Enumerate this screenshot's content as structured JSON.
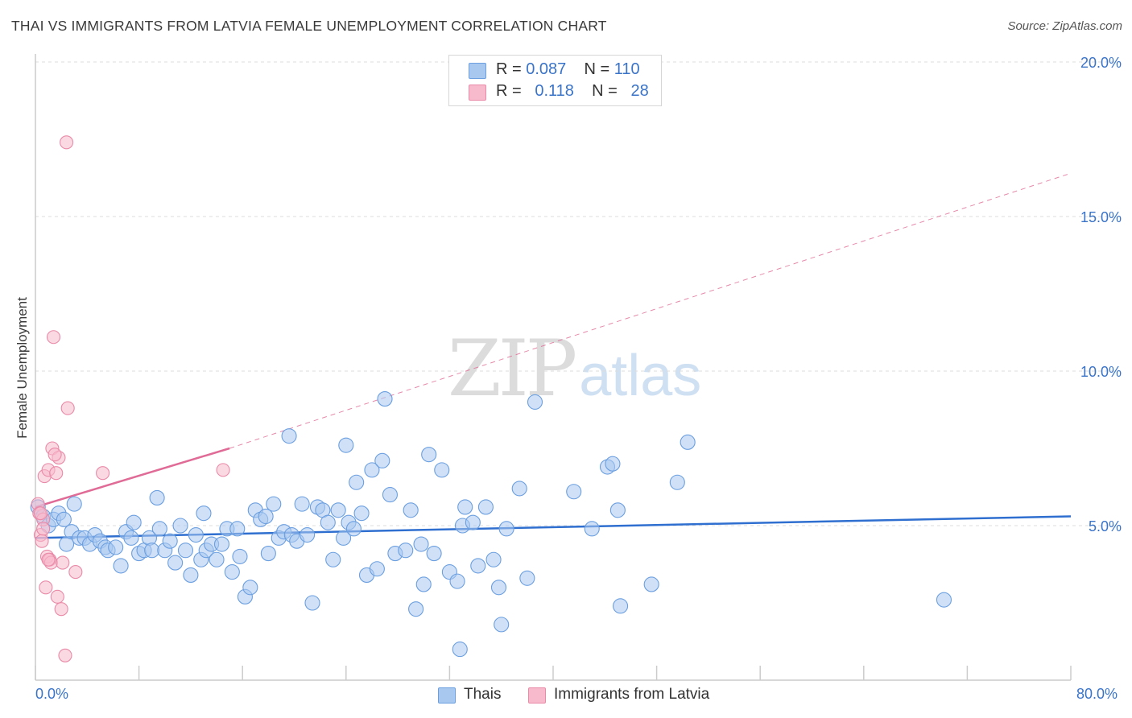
{
  "header": {
    "title": "THAI VS IMMIGRANTS FROM LATVIA FEMALE UNEMPLOYMENT CORRELATION CHART",
    "source": "Source: ZipAtlas.com"
  },
  "watermark": {
    "zip": "ZIP",
    "atlas": "atlas"
  },
  "legend": {
    "rows": [
      {
        "r_label": "R =",
        "r_value": "0.087",
        "n_label": "N =",
        "n_value": "110",
        "color": "#a9c8f0"
      },
      {
        "r_label": "R =",
        "r_value": "0.118",
        "n_label": "N =",
        "n_value": "28",
        "color": "#f7b9cc"
      }
    ]
  },
  "bottom_legend": {
    "items": [
      {
        "label": "Thais",
        "color": "#a9c8f0"
      },
      {
        "label": "Immigrants from Latvia",
        "color": "#f7b9cc"
      }
    ]
  },
  "chart_data": {
    "type": "scatter",
    "title": "THAI VS IMMIGRANTS FROM LATVIA FEMALE UNEMPLOYMENT CORRELATION CHART",
    "xlabel": "",
    "ylabel": "Female Unemployment",
    "xlim": [
      0,
      80
    ],
    "ylim": [
      0,
      20
    ],
    "x_tick_labels": [
      "0.0%",
      "80.0%"
    ],
    "y_ticks": [
      5,
      10,
      15,
      20
    ],
    "y_tick_labels": [
      "5.0%",
      "10.0%",
      "15.0%",
      "20.0%"
    ],
    "grid": true,
    "series": [
      {
        "name": "Thais",
        "color": "#6b9fe0",
        "fill": "#a9c8f0",
        "trend": {
          "x": [
            0,
            80
          ],
          "y": [
            4.6,
            5.3
          ],
          "style": "solid",
          "color": "#2f6fcf"
        },
        "points": [
          [
            0.2,
            5.6
          ],
          [
            0.6,
            5.3
          ],
          [
            1.0,
            5.0
          ],
          [
            1.4,
            5.2
          ],
          [
            1.8,
            5.4
          ],
          [
            2.2,
            5.2
          ],
          [
            2.4,
            4.4
          ],
          [
            2.8,
            4.8
          ],
          [
            3.0,
            5.7
          ],
          [
            3.4,
            4.6
          ],
          [
            3.8,
            4.6
          ],
          [
            4.2,
            4.4
          ],
          [
            4.6,
            4.7
          ],
          [
            5.0,
            4.5
          ],
          [
            5.4,
            4.3
          ],
          [
            5.6,
            4.2
          ],
          [
            6.2,
            4.3
          ],
          [
            6.6,
            3.7
          ],
          [
            7.0,
            4.8
          ],
          [
            7.4,
            4.6
          ],
          [
            7.6,
            5.1
          ],
          [
            8.0,
            4.1
          ],
          [
            8.4,
            4.2
          ],
          [
            8.8,
            4.6
          ],
          [
            9.0,
            4.2
          ],
          [
            9.4,
            5.9
          ],
          [
            9.6,
            4.9
          ],
          [
            10.0,
            4.2
          ],
          [
            10.4,
            4.5
          ],
          [
            10.8,
            3.8
          ],
          [
            11.2,
            5.0
          ],
          [
            11.6,
            4.2
          ],
          [
            12.0,
            3.4
          ],
          [
            12.4,
            4.7
          ],
          [
            12.8,
            3.9
          ],
          [
            13.0,
            5.4
          ],
          [
            13.2,
            4.2
          ],
          [
            13.6,
            4.4
          ],
          [
            14.0,
            3.9
          ],
          [
            14.4,
            4.4
          ],
          [
            14.8,
            4.9
          ],
          [
            15.2,
            3.5
          ],
          [
            15.6,
            4.9
          ],
          [
            15.8,
            4.0
          ],
          [
            16.2,
            2.7
          ],
          [
            16.6,
            3.0
          ],
          [
            17.0,
            5.5
          ],
          [
            17.4,
            5.2
          ],
          [
            17.8,
            5.3
          ],
          [
            18.0,
            4.1
          ],
          [
            18.4,
            5.7
          ],
          [
            18.8,
            4.6
          ],
          [
            19.2,
            4.8
          ],
          [
            19.6,
            7.9
          ],
          [
            19.8,
            4.7
          ],
          [
            20.2,
            4.5
          ],
          [
            20.6,
            5.7
          ],
          [
            21.0,
            4.7
          ],
          [
            21.4,
            2.5
          ],
          [
            21.8,
            5.6
          ],
          [
            22.2,
            5.5
          ],
          [
            22.6,
            5.1
          ],
          [
            23.0,
            3.9
          ],
          [
            23.4,
            5.5
          ],
          [
            23.8,
            4.6
          ],
          [
            24.2,
            5.1
          ],
          [
            24.6,
            4.9
          ],
          [
            24.8,
            6.4
          ],
          [
            25.2,
            5.4
          ],
          [
            25.6,
            3.4
          ],
          [
            26.0,
            6.8
          ],
          [
            26.4,
            3.6
          ],
          [
            26.8,
            7.1
          ],
          [
            27.0,
            9.1
          ],
          [
            27.4,
            6.0
          ],
          [
            27.8,
            4.1
          ],
          [
            28.6,
            4.2
          ],
          [
            29.0,
            5.5
          ],
          [
            29.4,
            2.3
          ],
          [
            29.8,
            4.4
          ],
          [
            30.0,
            3.1
          ],
          [
            30.4,
            7.3
          ],
          [
            30.8,
            4.1
          ],
          [
            31.4,
            6.8
          ],
          [
            32.0,
            3.5
          ],
          [
            32.6,
            3.2
          ],
          [
            33.0,
            5.0
          ],
          [
            33.2,
            5.6
          ],
          [
            33.8,
            5.1
          ],
          [
            34.2,
            3.7
          ],
          [
            34.8,
            5.6
          ],
          [
            35.4,
            3.9
          ],
          [
            35.8,
            3.0
          ],
          [
            36.0,
            1.8
          ],
          [
            36.4,
            4.9
          ],
          [
            37.4,
            6.2
          ],
          [
            38.0,
            3.3
          ],
          [
            38.6,
            9.0
          ],
          [
            41.6,
            6.1
          ],
          [
            43.0,
            4.9
          ],
          [
            44.2,
            6.9
          ],
          [
            44.6,
            7.0
          ],
          [
            45.0,
            5.5
          ],
          [
            47.6,
            3.1
          ],
          [
            49.6,
            6.4
          ],
          [
            50.4,
            7.7
          ],
          [
            70.2,
            2.6
          ],
          [
            32.8,
            1.0
          ],
          [
            45.2,
            2.4
          ],
          [
            24.0,
            7.6
          ]
        ]
      },
      {
        "name": "Immigrants from Latvia",
        "color": "#e98aa8",
        "fill": "#f7b9cc",
        "trend": {
          "x": [
            0,
            15
          ],
          "y": [
            5.6,
            7.5
          ],
          "style": "solid",
          "color": "#e06b96",
          "extension": {
            "x": [
              15,
              80
            ],
            "y": [
              7.5,
              16.4
            ],
            "style": "dashed"
          }
        },
        "points": [
          [
            0.2,
            5.7
          ],
          [
            0.3,
            5.4
          ],
          [
            0.4,
            4.7
          ],
          [
            0.5,
            4.5
          ],
          [
            0.6,
            5.2
          ],
          [
            0.7,
            6.6
          ],
          [
            0.8,
            3.0
          ],
          [
            0.9,
            4.0
          ],
          [
            1.0,
            6.8
          ],
          [
            1.1,
            3.9
          ],
          [
            1.2,
            3.8
          ],
          [
            1.3,
            7.5
          ],
          [
            1.4,
            11.1
          ],
          [
            1.6,
            6.7
          ],
          [
            1.7,
            2.7
          ],
          [
            1.8,
            7.2
          ],
          [
            2.0,
            2.3
          ],
          [
            2.1,
            3.8
          ],
          [
            2.3,
            0.8
          ],
          [
            2.5,
            8.8
          ],
          [
            3.1,
            3.5
          ],
          [
            5.2,
            6.7
          ],
          [
            14.5,
            6.8
          ],
          [
            2.4,
            17.4
          ],
          [
            0.4,
            5.4
          ],
          [
            0.6,
            4.9
          ],
          [
            1.0,
            3.9
          ],
          [
            1.5,
            7.3
          ]
        ]
      }
    ]
  }
}
